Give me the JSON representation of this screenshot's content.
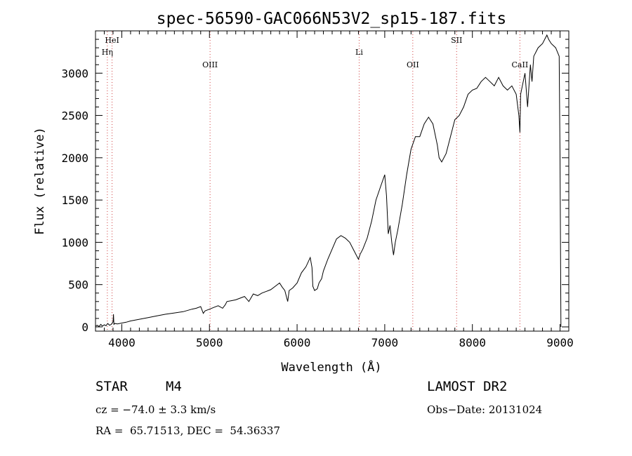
{
  "chart_data": {
    "type": "line",
    "title": "spec-56590-GAC066N53V2_sp15-187.fits",
    "xlabel": "Wavelength (Å)",
    "ylabel": "Flux (relative)",
    "xlim": [
      3700,
      9100
    ],
    "ylim": [
      -50,
      3500
    ],
    "xticks": [
      4000,
      5000,
      6000,
      7000,
      8000,
      9000
    ],
    "yticks": [
      0,
      500,
      1000,
      1500,
      2000,
      2500,
      3000
    ],
    "grid": false,
    "series": [
      {
        "x": [
          3700,
          3720,
          3740,
          3760,
          3780,
          3800,
          3820,
          3840,
          3860,
          3880,
          3900,
          3905,
          3910,
          3920,
          3950,
          4000,
          4050,
          4100,
          4200,
          4300,
          4400,
          4500,
          4600,
          4700,
          4800,
          4850,
          4900,
          4930,
          4950,
          5000,
          5050,
          5100,
          5150,
          5180,
          5200,
          5250,
          5300,
          5350,
          5400,
          5450,
          5500,
          5550,
          5600,
          5650,
          5700,
          5750,
          5800,
          5830,
          5860,
          5880,
          5893,
          5910,
          5950,
          6000,
          6050,
          6100,
          6150,
          6170,
          6180,
          6200,
          6230,
          6250,
          6280,
          6300,
          6350,
          6400,
          6450,
          6500,
          6550,
          6600,
          6650,
          6700,
          6720,
          6750,
          6800,
          6850,
          6900,
          6950,
          7000,
          7020,
          7040,
          7060,
          7080,
          7100,
          7120,
          7150,
          7200,
          7250,
          7300,
          7350,
          7400,
          7450,
          7500,
          7550,
          7600,
          7620,
          7650,
          7700,
          7750,
          7800,
          7850,
          7900,
          7950,
          8000,
          8050,
          8100,
          8150,
          8200,
          8250,
          8300,
          8350,
          8400,
          8450,
          8500,
          8530,
          8542,
          8550,
          8580,
          8600,
          8630,
          8662,
          8680,
          8700,
          8750,
          8800,
          8850,
          8870,
          8900,
          8950,
          8990,
          9000,
          9010
        ],
        "y": [
          10,
          20,
          5,
          30,
          10,
          25,
          15,
          40,
          20,
          30,
          60,
          150,
          30,
          40,
          35,
          45,
          55,
          70,
          90,
          110,
          130,
          150,
          165,
          180,
          210,
          220,
          240,
          160,
          190,
          210,
          230,
          250,
          220,
          260,
          300,
          310,
          320,
          340,
          360,
          300,
          390,
          370,
          400,
          420,
          440,
          480,
          520,
          470,
          430,
          350,
          300,
          430,
          460,
          520,
          640,
          710,
          820,
          700,
          480,
          430,
          450,
          520,
          570,
          660,
          800,
          920,
          1040,
          1080,
          1050,
          1000,
          900,
          800,
          860,
          920,
          1050,
          1250,
          1500,
          1650,
          1800,
          1550,
          1100,
          1200,
          1000,
          850,
          1000,
          1150,
          1450,
          1800,
          2100,
          2250,
          2250,
          2400,
          2480,
          2400,
          2150,
          2000,
          1950,
          2050,
          2250,
          2450,
          2500,
          2600,
          2750,
          2800,
          2820,
          2900,
          2950,
          2900,
          2850,
          2950,
          2850,
          2800,
          2850,
          2750,
          2500,
          2300,
          2750,
          2900,
          3000,
          2600,
          3100,
          2900,
          3200,
          3300,
          3350,
          3450,
          3400,
          3350,
          3300,
          3200,
          2000,
          0
        ]
      }
    ],
    "lines": [
      {
        "name": "HeI",
        "x": 3889,
        "row": 0
      },
      {
        "name": "Hη",
        "x": 3835,
        "row": 1
      },
      {
        "name": "OIII",
        "x": 5007,
        "row": 2
      },
      {
        "name": "Li",
        "x": 6708,
        "row": 1
      },
      {
        "name": "OII",
        "x": 7320,
        "row": 2
      },
      {
        "name": "SII",
        "x": 7820,
        "row": 0
      },
      {
        "name": "CaII",
        "x": 8542,
        "row": 2
      }
    ]
  },
  "footer": {
    "object_class": "STAR",
    "subclass": "M4",
    "redshift": "cz = −74.0 ± 3.3 km/s",
    "coords": "RA =  65.71513, DEC =  54.36337",
    "survey": "LAMOST DR2",
    "obs_date": "Obs−Date: 20131024"
  }
}
